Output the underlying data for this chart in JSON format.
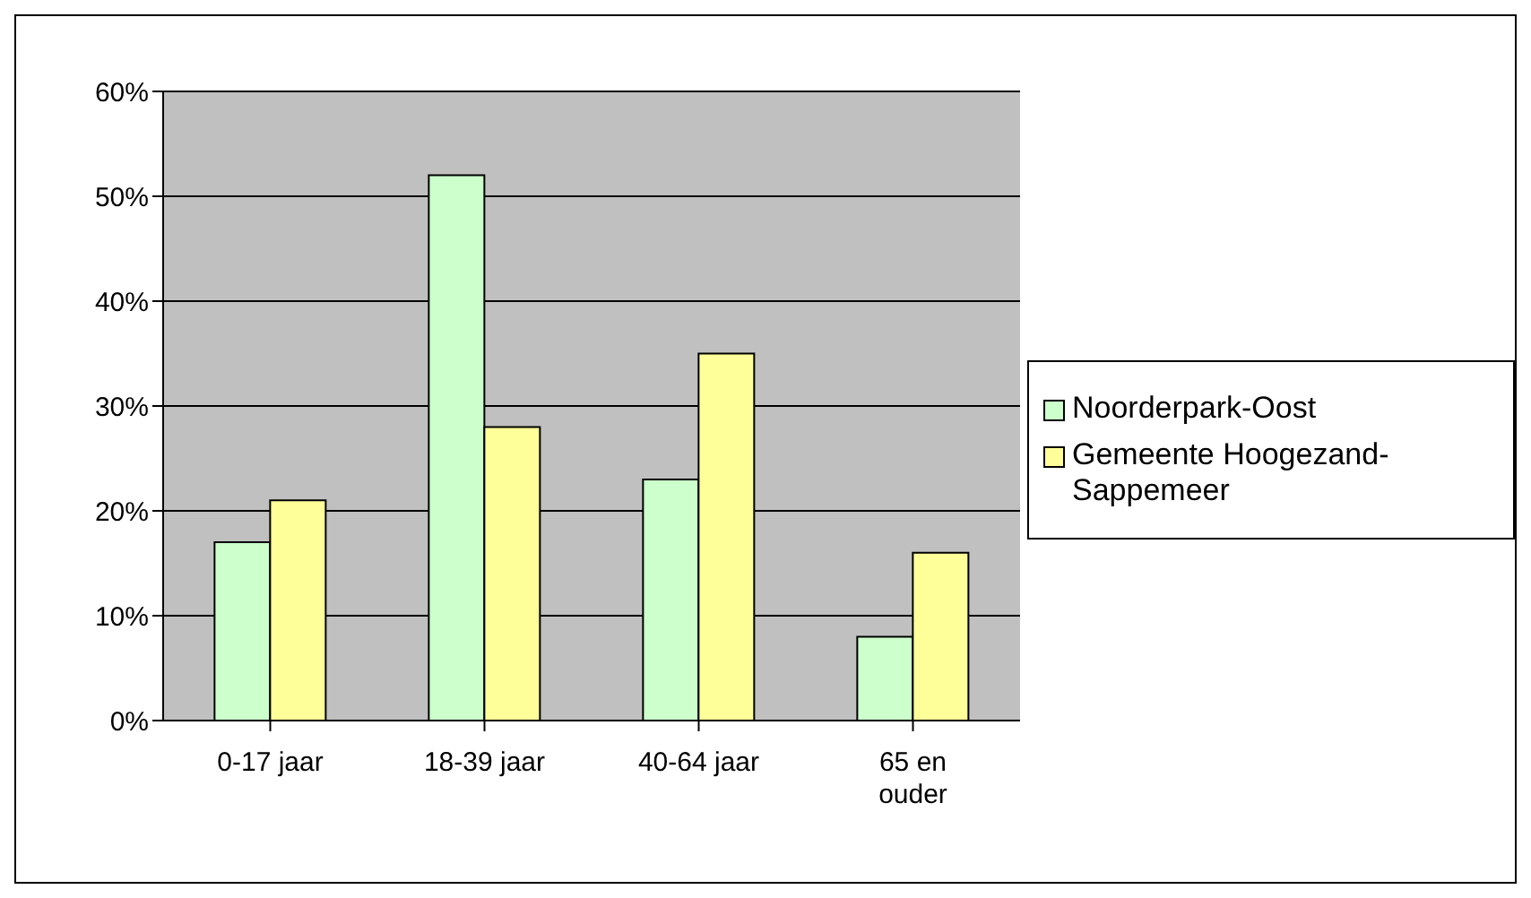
{
  "chart_data": {
    "type": "bar",
    "categories": [
      "0-17 jaar",
      "18-39 jaar",
      "40-64 jaar",
      "65 en ouder"
    ],
    "series": [
      {
        "name": "Noorderpark-Oost",
        "color": "#ccffcc",
        "values": [
          17,
          52,
          23,
          8
        ]
      },
      {
        "name": "Gemeente Hoogezand-Sappemeer",
        "color": "#ffff99",
        "values": [
          21,
          28,
          35,
          16
        ]
      }
    ],
    "ylim": [
      0,
      60
    ],
    "yticks": [
      {
        "value": 0,
        "label": "0%"
      },
      {
        "value": 10,
        "label": "10%"
      },
      {
        "value": 20,
        "label": "20%"
      },
      {
        "value": 30,
        "label": "30%"
      },
      {
        "value": 40,
        "label": "40%"
      },
      {
        "value": 50,
        "label": "50%"
      },
      {
        "value": 60,
        "label": "60%"
      }
    ],
    "grid": "y",
    "legend": "right"
  }
}
